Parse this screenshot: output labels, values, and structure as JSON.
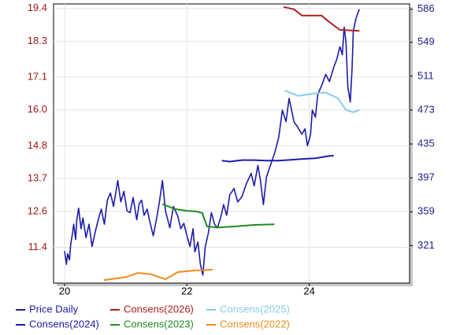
{
  "chart_data": {
    "type": "line",
    "xlim": [
      19.82,
      25.64
    ],
    "xticks": [
      20,
      22,
      24
    ],
    "ylim": [
      10.2,
      19.55
    ],
    "yticks": [
      11.4,
      12.6,
      13.7,
      14.8,
      {
        "value": 16,
        "label": "16.0"
      },
      17.1,
      18.3,
      19.4
    ],
    "y2lim": [
      279,
      592
    ],
    "y2ticks": [
      321,
      359,
      397,
      435,
      473,
      511,
      549,
      586
    ],
    "grid": true,
    "series": [
      {
        "name": "Price Daily",
        "color": "#1c1ca8",
        "axis": "y2",
        "x": [
          20.0,
          20.03,
          20.05,
          20.08,
          20.1,
          20.13,
          20.15,
          20.18,
          20.2,
          20.23,
          20.27,
          20.3,
          20.35,
          20.4,
          20.45,
          20.5,
          20.55,
          20.6,
          20.65,
          20.7,
          20.75,
          20.8,
          20.87,
          20.92,
          20.97,
          21.02,
          21.07,
          21.12,
          21.18,
          21.22,
          21.26,
          21.3,
          21.35,
          21.39,
          21.45,
          21.5,
          21.55,
          21.6,
          21.65,
          21.72,
          21.78,
          21.85,
          21.9,
          21.95,
          22.0,
          22.05,
          22.1,
          22.13,
          22.18,
          22.22,
          22.26,
          22.3,
          22.35,
          22.4,
          22.45,
          22.5,
          22.55,
          22.6,
          22.65,
          22.7,
          22.77,
          22.83,
          22.9,
          22.97,
          23.05,
          23.1,
          23.16,
          23.2,
          23.25,
          23.3,
          23.36,
          23.43,
          23.5,
          23.56,
          23.62,
          23.67,
          23.72,
          23.75,
          23.8,
          23.88,
          23.93,
          23.97,
          24.02,
          24.05,
          24.1,
          24.14,
          24.2,
          24.27,
          24.33,
          24.4,
          24.45,
          24.5,
          24.54,
          24.57,
          24.6,
          24.63,
          24.67,
          24.7,
          24.72,
          24.76,
          24.8,
          24.82
        ],
        "values": [
          315,
          300,
          312,
          305,
          322,
          335,
          345,
          328,
          350,
          363,
          340,
          352,
          330,
          345,
          320,
          336,
          350,
          362,
          345,
          372,
          380,
          365,
          394,
          370,
          382,
          360,
          358,
          375,
          350,
          368,
          372,
          355,
          362,
          349,
          332,
          350,
          370,
          394,
          360,
          341,
          365,
          354,
          340,
          346,
          332,
          320,
          340,
          314,
          325,
          300,
          288,
          320,
          335,
          358,
          345,
          341,
          352,
          367,
          355,
          378,
          385,
          370,
          376,
          390,
          402,
          388,
          411,
          395,
          367,
          398,
          410,
          424,
          442,
          473,
          460,
          486,
          470,
          460,
          455,
          446,
          452,
          433,
          445,
          473,
          465,
          491,
          500,
          513,
          505,
          521,
          530,
          544,
          535,
          566,
          550,
          499,
          482,
          520,
          561,
          575,
          583,
          586
        ]
      },
      {
        "name": "Consens(2026)",
        "color": "#b01e1e",
        "axis": "y",
        "x": [
          23.58,
          23.75,
          23.88,
          24.2,
          24.33,
          24.5,
          24.82
        ],
        "values": [
          19.45,
          19.37,
          19.16,
          19.16,
          18.94,
          18.68,
          18.65
        ]
      },
      {
        "name": "Consens(2025)",
        "color": "#87cde8",
        "axis": "y",
        "x": [
          23.6,
          23.82,
          24.08,
          24.27,
          24.47,
          24.6,
          24.72,
          24.82
        ],
        "values": [
          16.65,
          16.47,
          16.55,
          16.58,
          16.39,
          16.0,
          15.92,
          16.0
        ]
      },
      {
        "name": "Consens(2024)",
        "color": "#1c1ca8",
        "axis": "y",
        "x": [
          22.57,
          22.7,
          22.9,
          23.1,
          23.3,
          23.5,
          23.7,
          23.9,
          24.1,
          24.3,
          24.4
        ],
        "values": [
          14.3,
          14.27,
          14.32,
          14.32,
          14.3,
          14.3,
          14.33,
          14.36,
          14.38,
          14.45,
          14.47
        ]
      },
      {
        "name": "Consens(2023)",
        "color": "#1f8c1f",
        "axis": "y",
        "x": [
          21.6,
          21.8,
          22.0,
          22.15,
          22.25,
          22.33,
          22.5,
          22.8,
          23.1,
          23.43
        ],
        "values": [
          12.85,
          12.68,
          12.62,
          12.6,
          12.55,
          12.1,
          12.06,
          12.1,
          12.15,
          12.17
        ]
      },
      {
        "name": "Consens(2022)",
        "color": "#f08a1c",
        "axis": "y",
        "x": [
          20.64,
          21.0,
          21.2,
          21.4,
          21.65,
          21.85,
          22.1,
          22.42
        ],
        "values": [
          10.3,
          10.4,
          10.54,
          10.5,
          10.33,
          10.57,
          10.62,
          10.65
        ]
      }
    ]
  }
}
